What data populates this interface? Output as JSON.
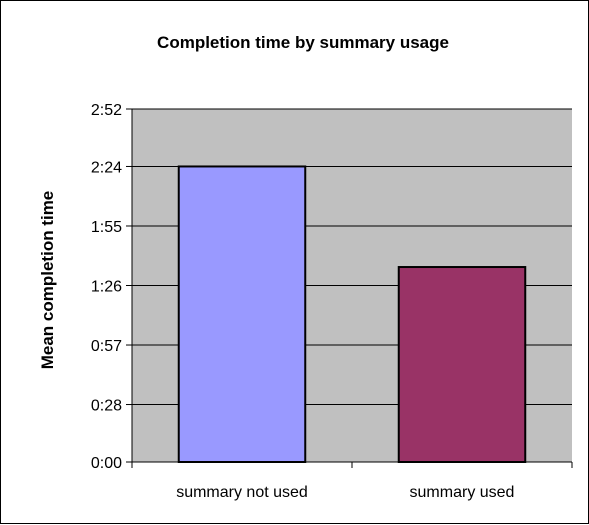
{
  "chart_data": {
    "type": "bar",
    "title": "Completion time by summary usage",
    "xlabel": "",
    "ylabel": "Mean completion time",
    "categories": [
      "summary not used",
      "summary used"
    ],
    "values": [
      144,
      95
    ],
    "value_unit": "seconds",
    "y_ticks": [
      {
        "value": 0,
        "label": "0:00"
      },
      {
        "value": 28,
        "label": "0:28"
      },
      {
        "value": 57,
        "label": "0:57"
      },
      {
        "value": 86,
        "label": "1:26"
      },
      {
        "value": 115,
        "label": "1:55"
      },
      {
        "value": 144,
        "label": "2:24"
      },
      {
        "value": 172,
        "label": "2:52"
      }
    ],
    "ylim": [
      0,
      172
    ],
    "grid": true,
    "bar_colors": [
      "#9999ff",
      "#993366"
    ],
    "plot_background": "#c0c0c0",
    "legend": "none"
  }
}
